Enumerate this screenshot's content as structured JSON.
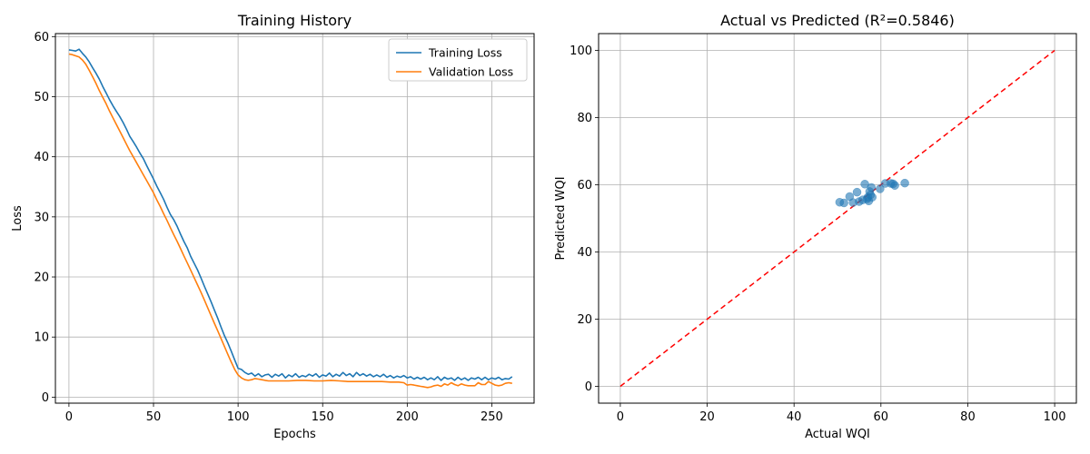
{
  "chart_data": [
    {
      "type": "line",
      "title": "Training History",
      "xlabel": "Epochs",
      "ylabel": "Loss",
      "xlim": [
        -8,
        275
      ],
      "ylim": [
        -1,
        60.5
      ],
      "xticks": [
        0,
        50,
        100,
        150,
        200,
        250
      ],
      "yticks": [
        0,
        10,
        20,
        30,
        40,
        50,
        60
      ],
      "grid": true,
      "legend_position": "top-right",
      "series": [
        {
          "name": "Training Loss",
          "color": "#1f77b4",
          "points": [
            [
              0,
              57.8
            ],
            [
              2,
              57.7
            ],
            [
              4,
              57.6
            ],
            [
              6,
              57.9
            ],
            [
              8,
              57.2
            ],
            [
              10,
              56.6
            ],
            [
              12,
              55.8
            ],
            [
              14,
              54.8
            ],
            [
              16,
              53.9
            ],
            [
              18,
              52.9
            ],
            [
              20,
              51.7
            ],
            [
              22,
              50.6
            ],
            [
              24,
              49.5
            ],
            [
              26,
              48.5
            ],
            [
              28,
              47.6
            ],
            [
              30,
              46.7
            ],
            [
              32,
              45.7
            ],
            [
              34,
              44.6
            ],
            [
              36,
              43.4
            ],
            [
              38,
              42.5
            ],
            [
              40,
              41.6
            ],
            [
              42,
              40.6
            ],
            [
              44,
              39.7
            ],
            [
              46,
              38.5
            ],
            [
              48,
              37.4
            ],
            [
              50,
              36.3
            ],
            [
              52,
              35.1
            ],
            [
              54,
              34.0
            ],
            [
              56,
              32.9
            ],
            [
              58,
              31.6
            ],
            [
              60,
              30.4
            ],
            [
              62,
              29.5
            ],
            [
              64,
              28.4
            ],
            [
              66,
              27.1
            ],
            [
              68,
              25.9
            ],
            [
              70,
              24.8
            ],
            [
              72,
              23.4
            ],
            [
              74,
              22.3
            ],
            [
              76,
              21.2
            ],
            [
              78,
              19.9
            ],
            [
              80,
              18.5
            ],
            [
              82,
              17.2
            ],
            [
              84,
              15.9
            ],
            [
              86,
              14.5
            ],
            [
              88,
              13.1
            ],
            [
              90,
              11.6
            ],
            [
              92,
              10.2
            ],
            [
              94,
              9.0
            ],
            [
              96,
              7.6
            ],
            [
              98,
              6.2
            ],
            [
              100,
              4.8
            ],
            [
              102,
              4.6
            ],
            [
              104,
              4.1
            ],
            [
              106,
              3.8
            ],
            [
              108,
              4.0
            ],
            [
              110,
              3.5
            ],
            [
              112,
              3.9
            ],
            [
              114,
              3.4
            ],
            [
              116,
              3.7
            ],
            [
              118,
              3.8
            ],
            [
              120,
              3.3
            ],
            [
              122,
              3.8
            ],
            [
              124,
              3.5
            ],
            [
              126,
              3.9
            ],
            [
              128,
              3.2
            ],
            [
              130,
              3.7
            ],
            [
              132,
              3.4
            ],
            [
              134,
              3.9
            ],
            [
              136,
              3.3
            ],
            [
              138,
              3.6
            ],
            [
              140,
              3.4
            ],
            [
              142,
              3.8
            ],
            [
              144,
              3.5
            ],
            [
              146,
              3.9
            ],
            [
              148,
              3.3
            ],
            [
              150,
              3.7
            ],
            [
              152,
              3.5
            ],
            [
              154,
              4.0
            ],
            [
              156,
              3.4
            ],
            [
              158,
              3.8
            ],
            [
              160,
              3.5
            ],
            [
              162,
              4.1
            ],
            [
              164,
              3.6
            ],
            [
              166,
              3.9
            ],
            [
              168,
              3.4
            ],
            [
              170,
              4.1
            ],
            [
              172,
              3.6
            ],
            [
              174,
              3.9
            ],
            [
              176,
              3.5
            ],
            [
              178,
              3.8
            ],
            [
              180,
              3.4
            ],
            [
              182,
              3.7
            ],
            [
              184,
              3.4
            ],
            [
              186,
              3.8
            ],
            [
              188,
              3.3
            ],
            [
              190,
              3.6
            ],
            [
              192,
              3.2
            ],
            [
              194,
              3.5
            ],
            [
              196,
              3.3
            ],
            [
              198,
              3.6
            ],
            [
              200,
              3.2
            ],
            [
              202,
              3.4
            ],
            [
              204,
              3.0
            ],
            [
              206,
              3.3
            ],
            [
              208,
              3.0
            ],
            [
              210,
              3.3
            ],
            [
              212,
              2.9
            ],
            [
              214,
              3.2
            ],
            [
              216,
              2.9
            ],
            [
              218,
              3.4
            ],
            [
              220,
              2.8
            ],
            [
              222,
              3.3
            ],
            [
              224,
              3.0
            ],
            [
              226,
              3.2
            ],
            [
              228,
              2.8
            ],
            [
              230,
              3.3
            ],
            [
              232,
              2.9
            ],
            [
              234,
              3.2
            ],
            [
              236,
              2.8
            ],
            [
              238,
              3.2
            ],
            [
              240,
              3.0
            ],
            [
              242,
              3.3
            ],
            [
              244,
              2.9
            ],
            [
              246,
              3.3
            ],
            [
              248,
              2.9
            ],
            [
              250,
              3.2
            ],
            [
              252,
              3.0
            ],
            [
              254,
              3.3
            ],
            [
              256,
              2.9
            ],
            [
              258,
              3.1
            ],
            [
              260,
              3.0
            ],
            [
              262,
              3.4
            ]
          ]
        },
        {
          "name": "Validation Loss",
          "color": "#ff7f0e",
          "points": [
            [
              0,
              57.1
            ],
            [
              2,
              57.0
            ],
            [
              4,
              56.8
            ],
            [
              6,
              56.6
            ],
            [
              8,
              56.1
            ],
            [
              10,
              55.4
            ],
            [
              12,
              54.4
            ],
            [
              14,
              53.3
            ],
            [
              16,
              52.2
            ],
            [
              18,
              51.0
            ],
            [
              20,
              49.9
            ],
            [
              22,
              48.8
            ],
            [
              24,
              47.6
            ],
            [
              26,
              46.5
            ],
            [
              28,
              45.4
            ],
            [
              30,
              44.3
            ],
            [
              32,
              43.2
            ],
            [
              34,
              42.1
            ],
            [
              36,
              41.0
            ],
            [
              38,
              40.0
            ],
            [
              40,
              39.0
            ],
            [
              42,
              38.0
            ],
            [
              44,
              37.0
            ],
            [
              46,
              36.0
            ],
            [
              48,
              35.0
            ],
            [
              50,
              34.0
            ],
            [
              52,
              32.8
            ],
            [
              54,
              31.7
            ],
            [
              56,
              30.5
            ],
            [
              58,
              29.4
            ],
            [
              60,
              28.2
            ],
            [
              62,
              27.0
            ],
            [
              64,
              25.9
            ],
            [
              66,
              24.7
            ],
            [
              68,
              23.5
            ],
            [
              70,
              22.3
            ],
            [
              72,
              21.1
            ],
            [
              74,
              19.9
            ],
            [
              76,
              18.7
            ],
            [
              78,
              17.5
            ],
            [
              80,
              16.2
            ],
            [
              82,
              14.9
            ],
            [
              84,
              13.6
            ],
            [
              86,
              12.3
            ],
            [
              88,
              11.0
            ],
            [
              90,
              9.7
            ],
            [
              92,
              8.4
            ],
            [
              94,
              7.1
            ],
            [
              96,
              5.8
            ],
            [
              98,
              4.6
            ],
            [
              100,
              3.7
            ],
            [
              102,
              3.2
            ],
            [
              104,
              2.9
            ],
            [
              106,
              2.8
            ],
            [
              108,
              2.9
            ],
            [
              110,
              3.1
            ],
            [
              112,
              3.0
            ],
            [
              114,
              2.9
            ],
            [
              116,
              2.8
            ],
            [
              118,
              2.7
            ],
            [
              120,
              2.7
            ],
            [
              125,
              2.7
            ],
            [
              130,
              2.7
            ],
            [
              135,
              2.8
            ],
            [
              140,
              2.8
            ],
            [
              145,
              2.7
            ],
            [
              150,
              2.7
            ],
            [
              155,
              2.8
            ],
            [
              160,
              2.7
            ],
            [
              165,
              2.6
            ],
            [
              170,
              2.6
            ],
            [
              175,
              2.6
            ],
            [
              180,
              2.6
            ],
            [
              185,
              2.6
            ],
            [
              190,
              2.5
            ],
            [
              195,
              2.5
            ],
            [
              198,
              2.4
            ],
            [
              200,
              2.0
            ],
            [
              202,
              2.1
            ],
            [
              204,
              2.0
            ],
            [
              206,
              1.9
            ],
            [
              208,
              1.8
            ],
            [
              210,
              1.7
            ],
            [
              212,
              1.6
            ],
            [
              214,
              1.7
            ],
            [
              216,
              1.9
            ],
            [
              218,
              2.0
            ],
            [
              220,
              1.8
            ],
            [
              222,
              2.2
            ],
            [
              224,
              2.0
            ],
            [
              226,
              2.4
            ],
            [
              228,
              2.1
            ],
            [
              230,
              1.9
            ],
            [
              232,
              2.2
            ],
            [
              234,
              2.0
            ],
            [
              236,
              1.9
            ],
            [
              238,
              1.9
            ],
            [
              240,
              1.9
            ],
            [
              242,
              2.4
            ],
            [
              244,
              2.1
            ],
            [
              246,
              2.1
            ],
            [
              248,
              2.6
            ],
            [
              250,
              2.3
            ],
            [
              252,
              2.0
            ],
            [
              254,
              1.9
            ],
            [
              256,
              2.0
            ],
            [
              258,
              2.3
            ],
            [
              260,
              2.4
            ],
            [
              262,
              2.3
            ]
          ]
        }
      ]
    },
    {
      "type": "scatter",
      "title": "Actual vs Predicted (R²=0.5846)",
      "xlabel": "Actual WQI",
      "ylabel": "Predicted WQI",
      "xlim": [
        -5,
        105
      ],
      "ylim": [
        -5,
        105
      ],
      "xticks": [
        0,
        20,
        40,
        60,
        80,
        100
      ],
      "yticks": [
        0,
        20,
        40,
        60,
        80,
        100
      ],
      "grid": true,
      "points_color": "#1f77b4",
      "points": [
        [
          50.5,
          54.8
        ],
        [
          51.5,
          54.6
        ],
        [
          52.8,
          56.5
        ],
        [
          53.6,
          54.7
        ],
        [
          54.5,
          57.8
        ],
        [
          55.0,
          55.0
        ],
        [
          55.8,
          55.5
        ],
        [
          56.3,
          60.2
        ],
        [
          56.8,
          55.8
        ],
        [
          57.0,
          56.3
        ],
        [
          57.2,
          55.2
        ],
        [
          57.4,
          58.0
        ],
        [
          57.6,
          57.0
        ],
        [
          57.8,
          59.2
        ],
        [
          58.0,
          56.3
        ],
        [
          59.8,
          58.8
        ],
        [
          61.0,
          60.4
        ],
        [
          62.3,
          60.4
        ],
        [
          62.8,
          60.3
        ],
        [
          63.2,
          59.8
        ],
        [
          65.5,
          60.5
        ]
      ],
      "reference_line": {
        "from": [
          0,
          0
        ],
        "to": [
          100,
          100
        ],
        "color": "#ff0000",
        "style": "dashed"
      }
    }
  ]
}
